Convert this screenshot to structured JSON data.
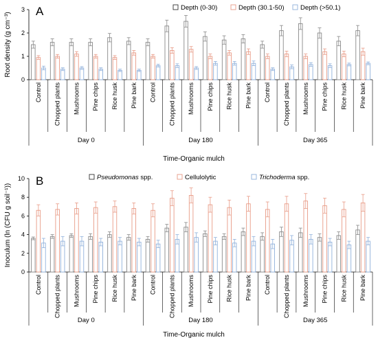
{
  "chart_data": [
    {
      "type": "bar",
      "panel": "A",
      "ylabel": "Root density (g cm⁻³)",
      "xlabel": "Time-Organic mulch",
      "ylim": [
        0,
        3
      ],
      "yticks": [
        0,
        1,
        2,
        3
      ],
      "legend_position": "top",
      "categories": [
        "Control",
        "Chopped plants",
        "Mushrooms",
        "Pine chips",
        "Rice husk",
        "Pine bark",
        "Control",
        "Chopped plants",
        "Mushrooms",
        "Pine chips",
        "Rice husk",
        "Pine bark",
        "Control",
        "Chopped plants",
        "Mushrooms",
        "Pine chips",
        "Rice husk",
        "Pine bark"
      ],
      "groups": [
        {
          "label": "Day 0",
          "count": 6
        },
        {
          "label": "Day 180",
          "count": 6
        },
        {
          "label": "Day 365",
          "count": 6
        }
      ],
      "series": [
        {
          "name": "Depth (0-30)",
          "color": "#888888",
          "values": [
            1.5,
            1.6,
            1.6,
            1.6,
            1.8,
            1.65,
            1.6,
            2.3,
            2.5,
            1.85,
            1.7,
            1.75,
            1.5,
            2.1,
            2.4,
            2.0,
            1.65,
            2.1
          ],
          "errors": [
            0.15,
            0.15,
            0.15,
            0.15,
            0.18,
            0.15,
            0.15,
            0.25,
            0.25,
            0.2,
            0.18,
            0.18,
            0.15,
            0.22,
            0.25,
            0.22,
            0.2,
            0.22
          ]
        },
        {
          "name": "Depth (30.1-50)",
          "color": "#e89a85",
          "values": [
            0.95,
            1.0,
            1.1,
            1.0,
            0.95,
            1.15,
            1.0,
            1.25,
            1.3,
            1.0,
            1.15,
            1.2,
            1.0,
            1.1,
            1.0,
            1.2,
            1.1,
            1.2
          ],
          "errors": [
            0.08,
            0.08,
            0.1,
            0.08,
            0.08,
            0.1,
            0.08,
            0.12,
            0.12,
            0.1,
            0.1,
            0.12,
            0.1,
            0.12,
            0.1,
            0.12,
            0.12,
            0.15
          ]
        },
        {
          "name": "Depth (>50.1)",
          "color": "#8fb0db",
          "values": [
            0.5,
            0.45,
            0.5,
            0.45,
            0.4,
            0.4,
            0.6,
            0.6,
            0.5,
            0.7,
            0.7,
            0.7,
            0.45,
            0.55,
            0.65,
            0.6,
            0.65,
            0.7
          ],
          "errors": [
            0.08,
            0.06,
            0.06,
            0.06,
            0.05,
            0.05,
            0.06,
            0.08,
            0.06,
            0.08,
            0.08,
            0.1,
            0.06,
            0.08,
            0.08,
            0.08,
            0.06,
            0.06
          ]
        }
      ]
    },
    {
      "type": "bar",
      "panel": "B",
      "ylabel": "Inoculum (ln (CFU g soil⁻¹))",
      "xlabel": "Time-Organic mulch",
      "ylim": [
        0,
        10
      ],
      "yticks": [
        0,
        2,
        4,
        6,
        8,
        10
      ],
      "legend_position": "top",
      "categories": [
        "Control",
        "Chopped plants",
        "Mushrooms",
        "Pine chips",
        "Rice husk",
        "Pine bark",
        "Control",
        "Chopped plants",
        "Mushrooms",
        "Pine chips",
        "Rice husk",
        "Pine bark",
        "Control",
        "Chopped plants",
        "Mushrooms",
        "Pine chips",
        "Rice husk",
        "Pine bark"
      ],
      "groups": [
        {
          "label": "Day 0",
          "count": 6
        },
        {
          "label": "Day 180",
          "count": 6
        },
        {
          "label": "Day 365",
          "count": 6
        }
      ],
      "series": [
        {
          "name": "Pseudomonas spp.",
          "italic": "Pseudomonas",
          "suffix": " spp.",
          "color": "#888888",
          "values": [
            3.6,
            3.8,
            3.9,
            3.8,
            4.0,
            3.7,
            3.5,
            4.7,
            4.8,
            4.1,
            3.8,
            4.3,
            3.8,
            4.3,
            4.2,
            3.7,
            3.9,
            4.5
          ],
          "errors": [
            0.15,
            0.2,
            0.2,
            0.3,
            0.3,
            0.3,
            0.3,
            0.4,
            0.5,
            0.3,
            0.3,
            0.4,
            0.4,
            0.5,
            0.5,
            0.4,
            0.4,
            0.5
          ]
        },
        {
          "name": "Cellulolytic",
          "color": "#e89a85",
          "values": [
            6.6,
            6.7,
            6.8,
            6.9,
            7.0,
            6.8,
            6.6,
            7.9,
            8.2,
            7.2,
            6.9,
            7.3,
            6.7,
            7.3,
            7.6,
            7.1,
            6.7,
            7.4
          ],
          "errors": [
            0.6,
            0.6,
            0.6,
            0.6,
            0.6,
            0.6,
            0.7,
            0.8,
            0.8,
            0.8,
            0.8,
            0.8,
            0.8,
            0.8,
            0.8,
            0.8,
            0.8,
            0.9
          ]
        },
        {
          "name": "Trichoderma spp.",
          "italic": "Trichoderma",
          "suffix": " spp.",
          "color": "#8fb0db",
          "values": [
            3.1,
            3.3,
            3.3,
            3.2,
            3.3,
            3.2,
            3.0,
            3.5,
            3.7,
            3.3,
            3.1,
            3.3,
            3.0,
            3.4,
            3.5,
            3.2,
            2.9,
            3.3
          ],
          "errors": [
            0.5,
            0.5,
            0.5,
            0.4,
            0.4,
            0.4,
            0.4,
            0.5,
            0.5,
            0.4,
            0.4,
            0.5,
            0.5,
            0.5,
            0.5,
            0.4,
            0.4,
            0.4
          ]
        }
      ]
    }
  ]
}
